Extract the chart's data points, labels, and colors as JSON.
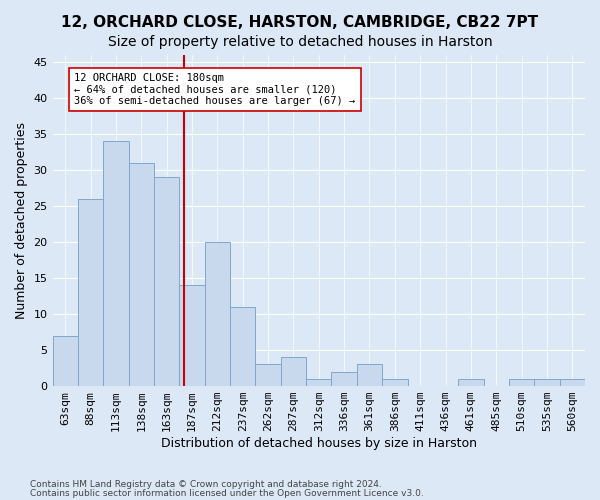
{
  "title": "12, ORCHARD CLOSE, HARSTON, CAMBRIDGE, CB22 7PT",
  "subtitle": "Size of property relative to detached houses in Harston",
  "xlabel": "Distribution of detached houses by size in Harston",
  "ylabel": "Number of detached properties",
  "footnote1": "Contains HM Land Registry data © Crown copyright and database right 2024.",
  "footnote2": "Contains public sector information licensed under the Open Government Licence v3.0.",
  "categories": [
    "63sqm",
    "88sqm",
    "113sqm",
    "138sqm",
    "163sqm",
    "187sqm",
    "212sqm",
    "237sqm",
    "262sqm",
    "287sqm",
    "312sqm",
    "336sqm",
    "361sqm",
    "386sqm",
    "411sqm",
    "436sqm",
    "461sqm",
    "485sqm",
    "510sqm",
    "535sqm",
    "560sqm"
  ],
  "values": [
    7,
    26,
    34,
    31,
    29,
    14,
    20,
    11,
    3,
    4,
    1,
    2,
    3,
    1,
    0,
    0,
    1,
    0,
    1,
    1,
    1
  ],
  "bar_color": "#c9d9ed",
  "bar_edge_color": "#7fa8cc",
  "vline_color": "#cc0000",
  "annotation_text": "12 ORCHARD CLOSE: 180sqm\n← 64% of detached houses are smaller (120)\n36% of semi-detached houses are larger (67) →",
  "annotation_box_color": "#ffffff",
  "annotation_box_edge_color": "#cc0000",
  "ylim": [
    0,
    46
  ],
  "yticks": [
    0,
    5,
    10,
    15,
    20,
    25,
    30,
    35,
    40,
    45
  ],
  "bg_color": "#dce8f5",
  "grid_color": "#ffffff",
  "title_fontsize": 11,
  "subtitle_fontsize": 10,
  "axis_fontsize": 9,
  "tick_fontsize": 8,
  "footnote_fontsize": 6.5
}
